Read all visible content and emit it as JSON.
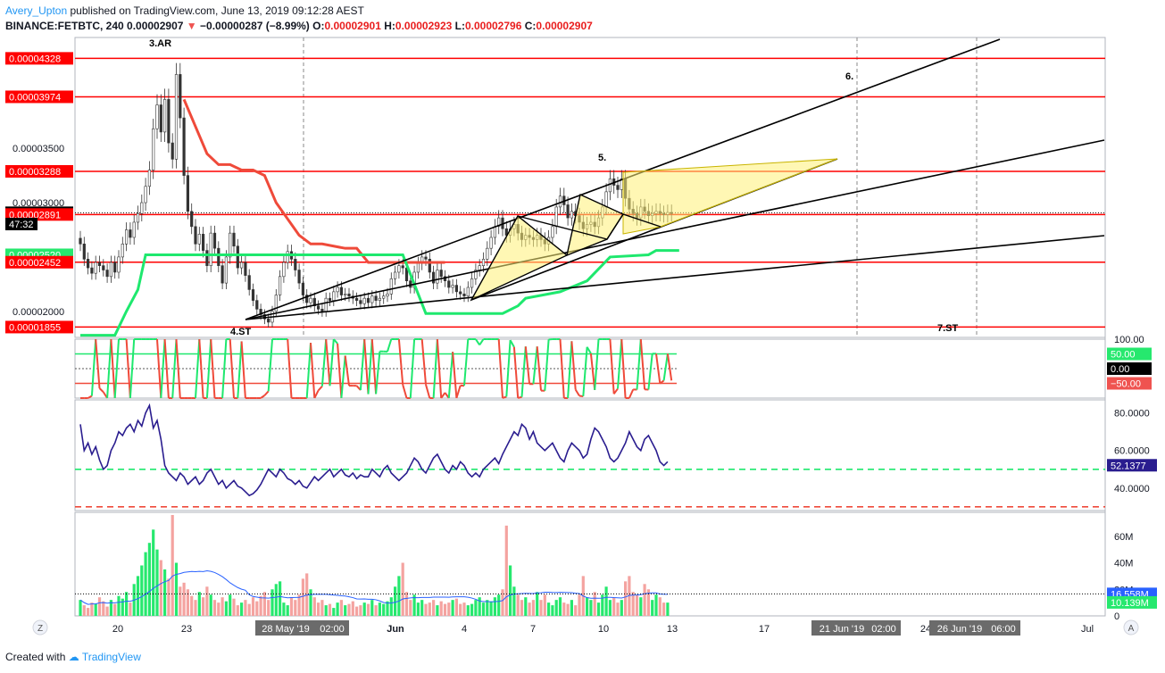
{
  "header": {
    "author": "Avery_Upton",
    "published": "published on TradingView.com, June 13, 2019 09:12:28 AEST",
    "symbol": "BINANCE:FETBTC, 240",
    "last": "0.00002907",
    "change_arrow": "▼",
    "change": "−0.00000287 (−8.99%)",
    "open_label": "O:",
    "open": "0.00002901",
    "high_label": "H:",
    "high": "0.00002923",
    "low_label": "L:",
    "low": "0.00002796",
    "close_label": "C:",
    "close": "0.00002907"
  },
  "footer": {
    "prefix": "Created with",
    "brand": "TradingView"
  },
  "colors": {
    "level_line": "#ff0000",
    "up": "#26a69a",
    "down": "#ef5350",
    "green_line": "#1ee86e",
    "red_line": "#ef4a3a",
    "rsi": "#2a1d8f",
    "pattern_fill": "#fff176"
  },
  "chart_data": [
    {
      "type": "candlestick",
      "panel": "price",
      "timeframe": "240",
      "x_ticks": [
        "20",
        "23",
        "28 May '19",
        "02:00",
        "Jun",
        "4",
        "7",
        "10",
        "13",
        "17",
        "21 Jun '19",
        "02:00",
        "24",
        "26 Jun '19",
        "06:00",
        "Jul"
      ],
      "y_ticks": [
        "0.00003500",
        "0.00003000",
        "0.00002000"
      ],
      "ylim": [
        1.76e-05,
        4.52e-05
      ],
      "price_labels": [
        {
          "value": 4.328e-05,
          "text": "0.00004328"
        },
        {
          "value": 3.974e-05,
          "text": "0.00003974"
        },
        {
          "value": 3.288e-05,
          "text": "0.00003288"
        },
        {
          "value": 2.907e-05,
          "text": "0.00002907"
        },
        {
          "value": 2.891e-05,
          "text": "0.00002891"
        },
        {
          "value": 2.52e-05,
          "text": "0.00002520"
        },
        {
          "value": 2.452e-05,
          "text": "0.00002452"
        },
        {
          "value": 1.855e-05,
          "text": "0.00001855"
        }
      ],
      "countdown": "47:32",
      "horizontal_levels": [
        4.328e-05,
        3.974e-05,
        3.288e-05,
        2.891e-05,
        2.452e-05,
        1.855e-05
      ],
      "annotations": [
        "3.AR",
        "4.ST",
        "5.",
        "6.",
        "7.ST"
      ],
      "candles_close": [
        2.62e-05,
        2.48e-05,
        2.4e-05,
        2.35e-05,
        2.45e-05,
        2.42e-05,
        2.38e-05,
        2.32e-05,
        2.45e-05,
        2.36e-05,
        2.5e-05,
        2.62e-05,
        2.75e-05,
        2.68e-05,
        2.82e-05,
        2.9e-05,
        3e-05,
        3.15e-05,
        3.3e-05,
        3.68e-05,
        3.9e-05,
        3.65e-05,
        3.95e-05,
        3.55e-05,
        3.4e-05,
        4.18e-05,
        3.78e-05,
        3.25e-05,
        2.92e-05,
        2.78e-05,
        2.62e-05,
        2.71e-05,
        2.56e-05,
        2.42e-05,
        2.72e-05,
        2.58e-05,
        2.42e-05,
        2.26e-05,
        2.5e-05,
        2.72e-05,
        2.6e-05,
        2.4e-05,
        2.45e-05,
        2.33e-05,
        2.2e-05,
        2.1e-05,
        2.02e-05,
        1.97e-05,
        1.93e-05,
        1.9e-05,
        2e-05,
        2.15e-05,
        2.32e-05,
        2.45e-05,
        2.55e-05,
        2.48e-05,
        2.38e-05,
        2.26e-05,
        2.15e-05,
        2.08e-05,
        2.12e-05,
        2.05e-05,
        2.02e-05,
        2e-05,
        2.12e-05,
        2.1e-05,
        2.18e-05,
        2.22e-05,
        2.15e-05,
        2.16e-05,
        2.14e-05,
        2.12e-05,
        2.1e-05,
        2.07e-05,
        2.12e-05,
        2.08e-05,
        2.14e-05,
        2.1e-05,
        2.12e-05,
        2.14e-05,
        2.16e-05,
        2.3e-05,
        2.36e-05,
        2.42e-05,
        2.4e-05,
        2.28e-05,
        2.22e-05,
        2.36e-05,
        2.44e-05,
        2.5e-05,
        2.48e-05,
        2.36e-05,
        2.26e-05,
        2.38e-05,
        2.32e-05,
        2.28e-05,
        2.22e-05,
        2.24e-05,
        2.18e-05,
        2.16e-05,
        2.14e-05,
        2.22e-05,
        2.3e-05,
        2.38e-05,
        2.42e-05,
        2.48e-05,
        2.58e-05,
        2.68e-05,
        2.78e-05,
        2.86e-05,
        2.76e-05,
        2.7e-05,
        2.76e-05,
        2.8e-05,
        2.72e-05,
        2.66e-05,
        2.7e-05,
        2.68e-05,
        2.66e-05,
        2.7e-05,
        2.66e-05,
        2.62e-05,
        2.68e-05,
        2.78e-05,
        2.96e-05,
        3.06e-05,
        2.98e-05,
        2.86e-05,
        2.92e-05,
        2.88e-05,
        2.82e-05,
        2.76e-05,
        2.8e-05,
        2.82e-05,
        2.78e-05,
        2.86e-05,
        2.96e-05,
        3.1e-05,
        3.22e-05,
        3.16e-05,
        3.12e-05,
        3.22e-05,
        3.04e-05,
        2.94e-05,
        2.9e-05,
        2.86e-05,
        2.96e-05,
        2.92e-05,
        2.88e-05,
        2.9e-05,
        2.92e-05,
        2.9e-05,
        2.89e-05,
        2.91e-05,
        2.9e-05
      ]
    },
    {
      "type": "line",
      "panel": "oscillator",
      "y_ticks": [
        "100.00",
        "50.00",
        "0.00",
        "−50.00"
      ],
      "ylim": [
        -100,
        100
      ],
      "current_labels": [
        "50.00",
        "0.00",
        "−50.00"
      ],
      "levels": [
        50,
        0,
        -50
      ]
    },
    {
      "type": "line",
      "panel": "rsi",
      "y_ticks": [
        "80.0000",
        "60.0000",
        "40.0000"
      ],
      "ylim": [
        28,
        87
      ],
      "levels": [
        50,
        30
      ],
      "current_label": "52.1377",
      "values": [
        74,
        60,
        64,
        58,
        62,
        55,
        50,
        52,
        60,
        64,
        70,
        68,
        72,
        74,
        70,
        76,
        73,
        80,
        84,
        72,
        76,
        66,
        52,
        48,
        46,
        44,
        48,
        46,
        42,
        44,
        46,
        42,
        44,
        48,
        50,
        46,
        42,
        44,
        40,
        42,
        44,
        41,
        40,
        38,
        36,
        37,
        39,
        42,
        46,
        50,
        48,
        46,
        50,
        48,
        45,
        44,
        42,
        44,
        41,
        40,
        43,
        46,
        44,
        46,
        48,
        50,
        46,
        48,
        50,
        47,
        46,
        48,
        45,
        47,
        46,
        46,
        50,
        48,
        46,
        50,
        52,
        48,
        46,
        44,
        46,
        48,
        52,
        56,
        54,
        50,
        48,
        52,
        56,
        58,
        54,
        50,
        48,
        52,
        50,
        54,
        52,
        48,
        46,
        48,
        46,
        50,
        52,
        54,
        56,
        53,
        58,
        62,
        66,
        70,
        68,
        74,
        72,
        66,
        70,
        64,
        62,
        60,
        62,
        64,
        60,
        56,
        54,
        60,
        64,
        62,
        60,
        56,
        58,
        66,
        72,
        70,
        66,
        62,
        56,
        54,
        56,
        60,
        64,
        70,
        66,
        62,
        60,
        66,
        68,
        64,
        60,
        54,
        52,
        54
      ]
    },
    {
      "type": "bar",
      "panel": "volume",
      "y_ticks": [
        "60M",
        "40M",
        "20M",
        "0"
      ],
      "ylim": [
        0,
        78
      ],
      "current_labels": [
        "16.558M",
        "10.139M"
      ],
      "values": [
        12,
        8,
        6,
        10,
        9,
        14,
        11,
        7,
        12,
        9,
        15,
        13,
        18,
        10,
        24,
        30,
        38,
        48,
        55,
        65,
        50,
        42,
        35,
        28,
        76,
        40,
        22,
        25,
        20,
        15,
        12,
        18,
        14,
        22,
        16,
        12,
        10,
        14,
        11,
        16,
        13,
        8,
        10,
        12,
        9,
        14,
        11,
        15,
        18,
        12,
        20,
        24,
        26,
        10,
        8,
        14,
        12,
        16,
        28,
        32,
        20,
        14,
        10,
        12,
        8,
        9,
        6,
        10,
        12,
        8,
        9,
        11,
        7,
        8,
        10,
        9,
        12,
        8,
        10,
        9,
        11,
        14,
        22,
        30,
        40,
        18,
        12,
        16,
        10,
        12,
        9,
        10,
        12,
        8,
        11,
        9,
        10,
        12,
        13,
        9,
        10,
        8,
        9,
        12,
        14,
        10,
        12,
        11,
        14,
        16,
        20,
        68,
        38,
        22,
        16,
        12,
        14,
        10,
        12,
        18,
        12,
        16,
        10,
        8,
        12,
        14,
        10,
        9,
        12,
        8,
        16,
        30,
        14,
        12,
        18,
        10,
        16,
        22,
        12,
        14,
        10,
        12,
        26,
        30,
        18,
        16,
        14,
        24,
        20,
        12,
        16,
        14,
        10,
        10
      ]
    }
  ]
}
